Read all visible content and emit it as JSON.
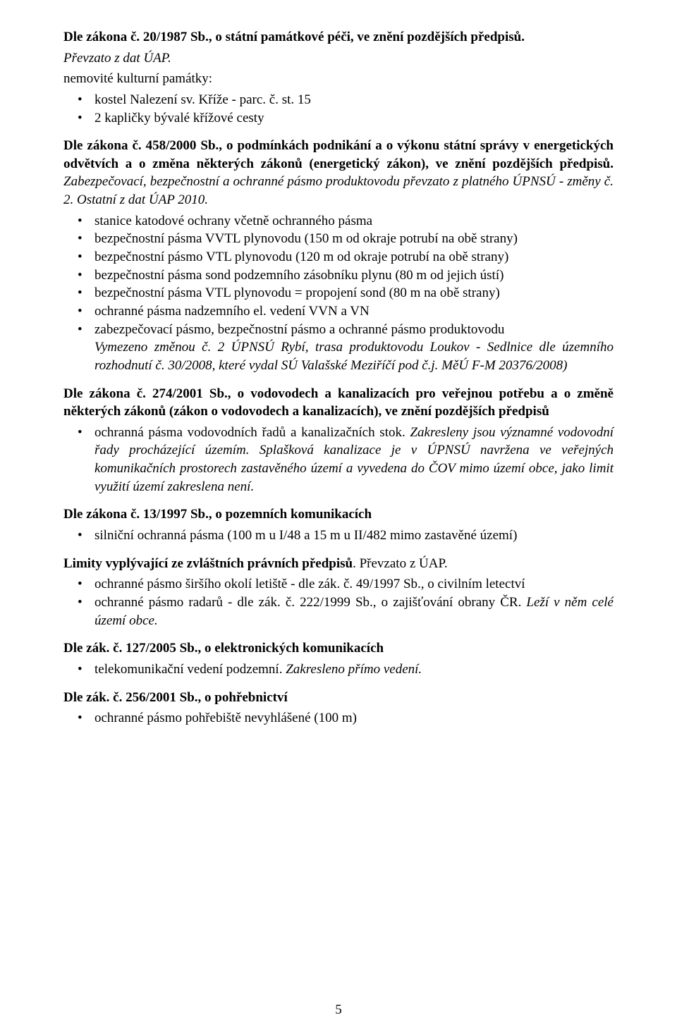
{
  "sec1": {
    "heading_a": "Dle zákona č. 20/1987 Sb., o státní památkové péči, ve znění pozdějších předpisů.",
    "heading_b": "Převzato z dat ÚAP.",
    "line1": "nemovité kulturní památky:",
    "items": [
      "kostel Nalezení sv. Kříže - parc. č. st. 15",
      "2 kapličky bývalé křížové cesty"
    ]
  },
  "sec2": {
    "heading": "Dle zákona č. 458/2000 Sb., o podmínkách podnikání a o výkonu státní správy v energetických odvětvích a o změna některých zákonů (energetický zákon), ve znění pozdějších předpisů.",
    "heading_italic": " Zabezpečovací, bezpečnostní a ochranné pásmo produktovodu převzato z platného ÚPNSÚ - změny č. 2. Ostatní z dat ÚAP 2010.",
    "items": [
      "stanice katodové ochrany včetně ochranného pásma",
      "bezpečnostní pásma VVTL plynovodu (150 m od okraje potrubí na obě strany)",
      "bezpečnostní pásmo VTL plynovodu (120 m od okraje potrubí na obě strany)",
      "bezpečnostní pásma sond podzemního zásobníku plynu (80 m od jejich ústí)",
      "bezpečnostní pásma VTL plynovodu = propojení sond (80 m na obě strany)",
      "ochranné pásma nadzemního el. vedení VVN a VN",
      "zabezpečovací pásmo, bezpečnostní pásmo a ochranné pásmo produktovodu"
    ],
    "sub_italic": "Vymezeno změnou č. 2 ÚPNSÚ Rybí, trasa produktovodu Loukov - Sedlnice dle územního rozhodnutí č. 30/2008, které vydal SÚ Valašské Meziříčí pod č.j. MěÚ F-M 20376/2008)"
  },
  "sec3": {
    "heading": "Dle zákona č. 274/2001 Sb., o vodovodech a kanalizacích pro veřejnou potřebu a o změně některých zákonů (zákon o vodovodech a kanalizacích), ve znění pozdějších předpisů",
    "item_plain": "ochranná pásma vodovodních řadů a kanalizačních stok. ",
    "item_italic": "Zakresleny jsou významné vodovodní řady procházející územím. Splašková kanalizace je v ÚPNSÚ navržena ve veřejných komunikačních prostorech zastavěného území a vyvedena do ČOV mimo území obce, jako limit využití území zakreslena není."
  },
  "sec4": {
    "heading": "Dle zákona č. 13/1997 Sb., o pozemních komunikacích",
    "items": [
      "silniční ochranná pásma (100 m u I/48 a 15 m u II/482 mimo zastavěné území)"
    ]
  },
  "sec5": {
    "heading_a": "Limity vyplývající ze zvláštních právních předpisů",
    "heading_b": ". Převzato z ÚAP.",
    "item1": "ochranné pásmo širšího okolí letiště - dle zák. č. 49/1997 Sb., o civilním letectví",
    "item2_plain": "ochranné pásmo radarů - dle zák. č. 222/1999 Sb., o zajišťování obrany ČR. ",
    "item2_italic": "Leží v něm celé území obce."
  },
  "sec6": {
    "heading": "Dle zák. č. 127/2005 Sb., o elektronických komunikacích",
    "item_plain": "telekomunikační vedení podzemní. ",
    "item_italic": "Zakresleno přímo vedení."
  },
  "sec7": {
    "heading": "Dle zák. č. 256/2001 Sb., o pohřebnictví",
    "items": [
      "ochranné pásmo pohřebiště nevyhlášené (100 m)"
    ]
  },
  "page_number": "5"
}
